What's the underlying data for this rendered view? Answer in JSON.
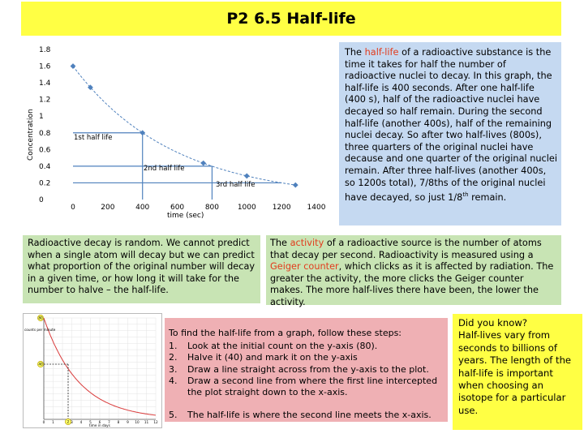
{
  "title": "P2 6.5 Half-life",
  "graph1": {
    "ylabel": "Concentration",
    "xlabel": "time (sec)",
    "yticks": [
      "0",
      "0.2",
      "0.4",
      "0.6",
      "0.8",
      "1",
      "1.2",
      "1.4",
      "1.6",
      "1.8"
    ],
    "xticks": [
      "0",
      "200",
      "400",
      "600",
      "800",
      "1000",
      "1200",
      "1400"
    ],
    "labels": [
      "1st half life",
      "2nd half life",
      "3rd half life"
    ]
  },
  "halflife_box": {
    "prefix": "The ",
    "term": "half-life",
    "text": " of a radioactive substance is the time it takes for half the number of radioactive nuclei to decay. In this graph, the half-life is 400 seconds. After one half-life (400 s), half of the radioactive nuclei have decayed so half remain. During the second half-life (another 400s), half of the remaining nuclei decay. So after two half-lives (800s), three quarters of the original nuclei have decause and one quarter of the original nuclei remain. After three half-lives (another 400s, so 1200s total), 7/8ths of the original nuclei have decayed, so just 1/8",
    "sup": "th",
    "end": " remain."
  },
  "random_box": {
    "text": "Radioactive decay is random. We cannot predict when a single atom will decay but we can predict what proportion of the original number will decay in a given time, or how long it will take for the number to halve – the half-life."
  },
  "activity_box": {
    "prefix": "The ",
    "term": "activity",
    "mid": " of a radioactive source is the number of atoms that decay per second. Radioactivity is measured using a ",
    "term2": "Geiger counter",
    "end": ", which clicks as it is affected by radiation. The greater the activity, the more clicks the Geiger counter makes. The more half-lives there have been, the lower the activity."
  },
  "steps_box": {
    "intro": "To find the half-life from a graph, follow these steps:",
    "steps": [
      {
        "num": "1.",
        "text": "Look at the initial count on the y-axis (80)."
      },
      {
        "num": "2.",
        "text": "Halve it (40) and mark it on the y-axis"
      },
      {
        "num": "3.",
        "text": "Draw a line straight across from the y-axis to the plot."
      },
      {
        "num": "4.",
        "text": "Draw a second line from where the first line intercepted the plot straight down to the x-axis."
      },
      {
        "num": "5.",
        "text": "The half-life is where the second line meets the x-axis."
      }
    ]
  },
  "dyk_box": {
    "heading": "Did you know?",
    "text": "Half-lives vary from seconds to billions of years. The length of the half-life is important when choosing an isotope for a particular use."
  },
  "graph2": {
    "ylabel": "counts per minute",
    "xlabel": "time in days",
    "marks": [
      "80",
      "40",
      "2"
    ],
    "xticks": [
      "0",
      "1",
      "2",
      "3",
      "4",
      "5",
      "6",
      "7",
      "8",
      "9",
      "10",
      "11",
      "12"
    ]
  },
  "colors": {
    "title_bg": "#ffff44",
    "blue_box": "#c5d9f1",
    "green_box": "#c8e4b4",
    "pink_box": "#efb0b4",
    "term_red": "#e23b1c",
    "curve_blue": "#4f81bd",
    "curve_red": "#d93a3a"
  }
}
